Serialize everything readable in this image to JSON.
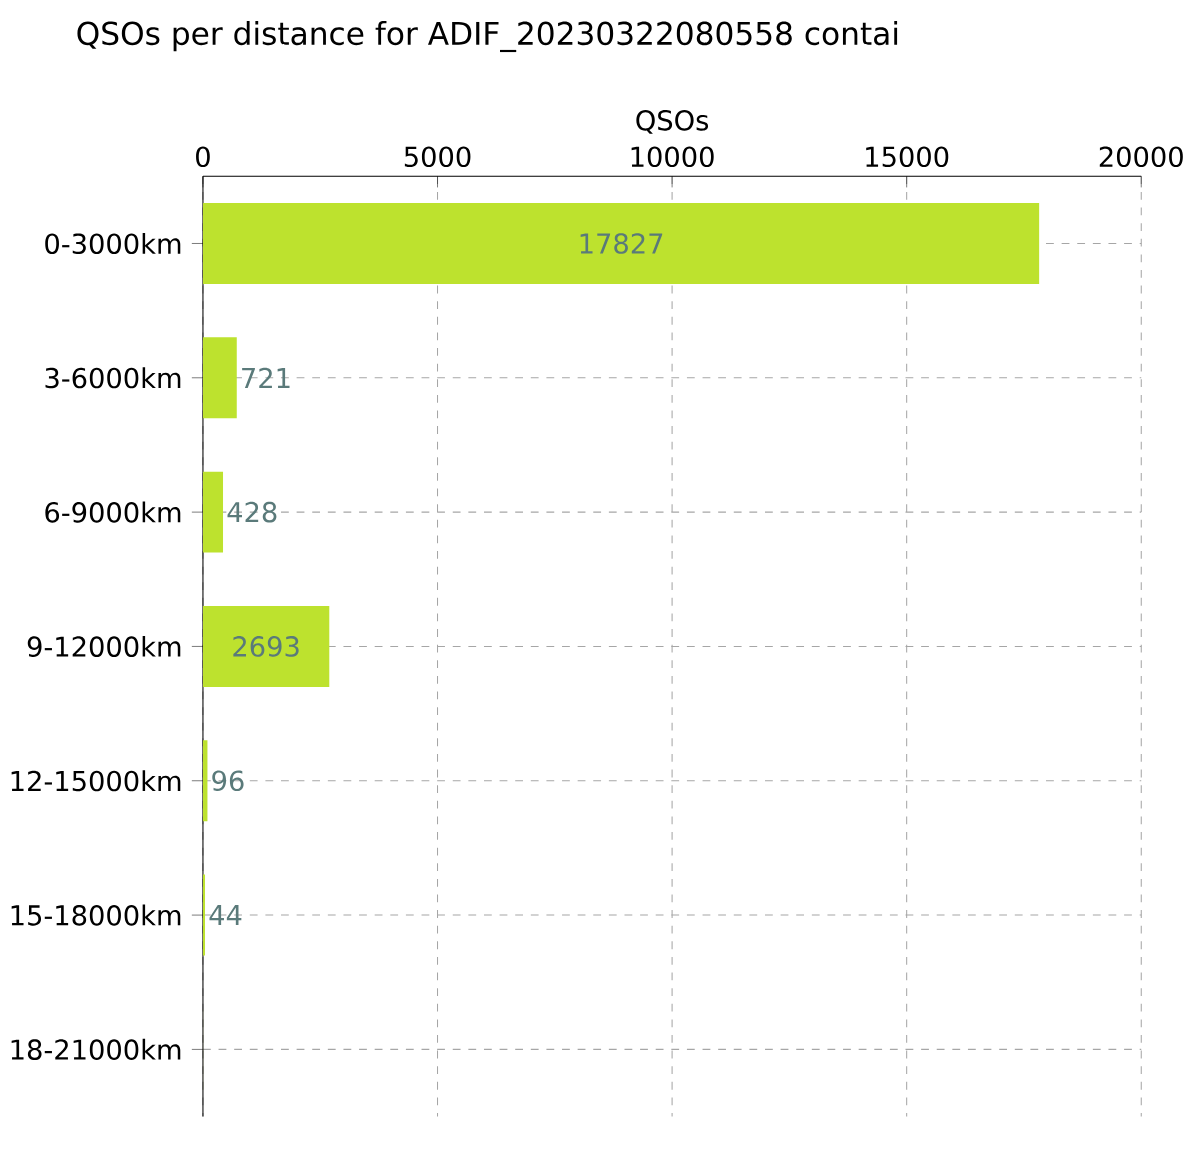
{
  "chart_data": {
    "type": "bar",
    "orientation": "horizontal",
    "title": "QSOs per distance for ADIF_20230322080558 contai",
    "xlabel": "QSOs",
    "categories": [
      "0-3000km",
      "3-6000km",
      "6-9000km",
      "9-12000km",
      "12-15000km",
      "15-18000km",
      "18-21000km"
    ],
    "values": [
      17827,
      721,
      428,
      2693,
      96,
      44,
      2
    ],
    "value_labels": [
      "17827",
      "721",
      "428",
      "2693",
      "96",
      "44",
      null
    ],
    "color": "#bde22e",
    "xlim": [
      0,
      20000
    ],
    "xticks": [
      0,
      5000,
      10000,
      15000,
      20000
    ],
    "grid": true
  }
}
